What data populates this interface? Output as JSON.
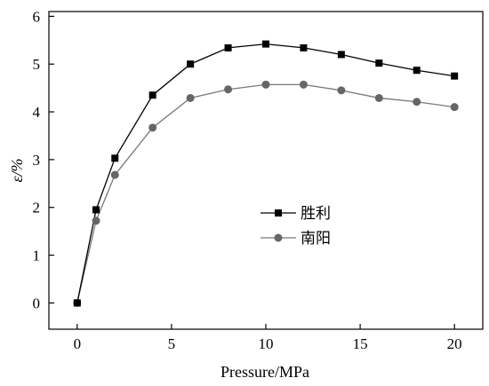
{
  "chart_data": {
    "type": "line",
    "xlabel": "Pressure/MPa",
    "ylabel": "ε/%",
    "xlim": [
      -1.5,
      21.5
    ],
    "ylim": [
      -0.55,
      6.1
    ],
    "xticks": [
      0,
      5,
      10,
      15,
      20
    ],
    "yticks": [
      0,
      1,
      2,
      3,
      4,
      5,
      6
    ],
    "xtick_labels": [
      "0",
      "5",
      "10",
      "15",
      "20"
    ],
    "ytick_labels": [
      "0",
      "1",
      "2",
      "3",
      "4",
      "5",
      "6"
    ],
    "grid": false,
    "legend_position": "center",
    "series": [
      {
        "name": "胜利",
        "marker": "square",
        "line_color": "#000000",
        "marker_color": "#000000",
        "x": [
          0,
          1,
          2,
          4,
          6,
          8,
          10,
          12,
          14,
          16,
          18,
          20
        ],
        "y": [
          0,
          1.95,
          3.03,
          4.35,
          5.0,
          5.34,
          5.42,
          5.34,
          5.2,
          5.02,
          4.87,
          4.75
        ]
      },
      {
        "name": "南阳",
        "marker": "circle",
        "line_color": "#777777",
        "marker_color": "#666666",
        "x": [
          0,
          1,
          2,
          4,
          6,
          8,
          10,
          12,
          14,
          16,
          18,
          20
        ],
        "y": [
          0,
          1.72,
          2.68,
          3.67,
          4.29,
          4.47,
          4.57,
          4.57,
          4.45,
          4.29,
          4.21,
          4.1
        ]
      }
    ]
  }
}
